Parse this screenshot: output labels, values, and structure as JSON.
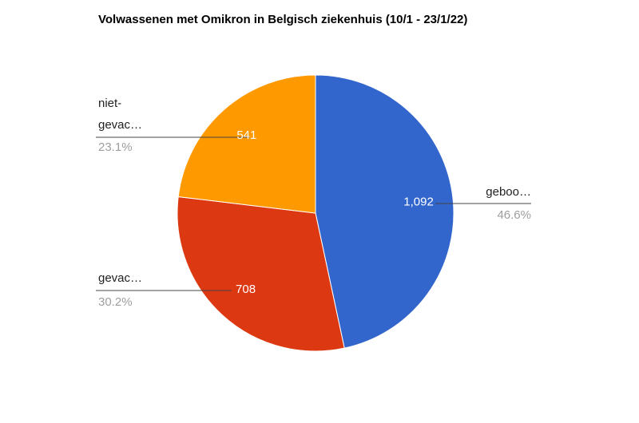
{
  "chart_data": {
    "type": "pie",
    "title": "Volwassenen met Omikron in Belgisch ziekenhuis (10/1 - 23/1/22)",
    "categories": [
      "geboo…",
      "gevac…",
      "niet-gevac…"
    ],
    "values": [
      1092,
      708,
      541
    ],
    "value_labels": [
      "1,092",
      "708",
      "541"
    ],
    "percent_labels": [
      "46.6%",
      "30.2%",
      "23.1%"
    ],
    "colors": [
      "#3366cc",
      "#dc3912",
      "#ff9900"
    ]
  }
}
